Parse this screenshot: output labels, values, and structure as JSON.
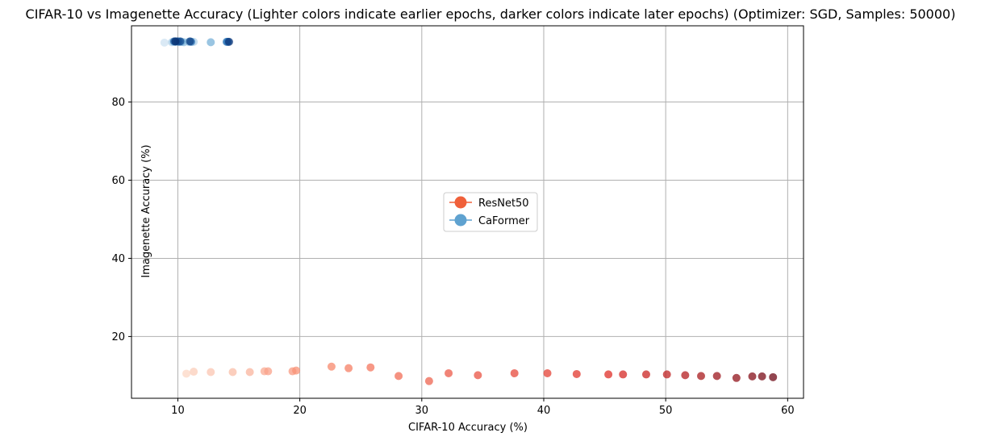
{
  "chart_data": {
    "type": "scatter",
    "title": "CIFAR-10 vs Imagenette Accuracy (Lighter colors indicate earlier epochs, darker colors indicate later epochs) (Optimizer: SGD, Samples: 50000)",
    "xlabel": "CIFAR-10 Accuracy (%)",
    "ylabel": "Imagenette Accuracy (%)",
    "xlim": [
      6.2,
      61.3
    ],
    "ylim": [
      4.2,
      99.5
    ],
    "xticks": [
      10,
      20,
      30,
      40,
      50,
      60
    ],
    "yticks": [
      20,
      40,
      60,
      80
    ],
    "grid": true,
    "legend_position": "center",
    "series": [
      {
        "name": "ResNet50",
        "color": "#f0603a",
        "colormap": "reds",
        "points": [
          [
            10.7,
            10.5
          ],
          [
            11.3,
            11.0
          ],
          [
            12.7,
            10.9
          ],
          [
            14.5,
            10.9
          ],
          [
            15.9,
            10.9
          ],
          [
            17.1,
            11.1
          ],
          [
            17.4,
            11.1
          ],
          [
            19.4,
            11.1
          ],
          [
            19.7,
            11.3
          ],
          [
            22.6,
            12.3
          ],
          [
            24.0,
            11.9
          ],
          [
            25.8,
            12.1
          ],
          [
            28.1,
            9.9
          ],
          [
            30.6,
            8.6
          ],
          [
            32.2,
            10.6
          ],
          [
            34.6,
            10.1
          ],
          [
            37.6,
            10.6
          ],
          [
            40.3,
            10.6
          ],
          [
            42.7,
            10.4
          ],
          [
            45.3,
            10.3
          ],
          [
            46.5,
            10.3
          ],
          [
            48.4,
            10.3
          ],
          [
            50.1,
            10.3
          ],
          [
            51.6,
            10.1
          ],
          [
            52.9,
            9.9
          ],
          [
            54.2,
            9.9
          ],
          [
            55.8,
            9.4
          ],
          [
            57.1,
            9.8
          ],
          [
            57.9,
            9.8
          ],
          [
            58.8,
            9.6
          ]
        ]
      },
      {
        "name": "CaFormer",
        "color": "#5fa2d0",
        "colormap": "blues",
        "points": [
          [
            8.9,
            95.2
          ],
          [
            9.5,
            95.3
          ],
          [
            11.3,
            95.4
          ],
          [
            9.6,
            95.4
          ],
          [
            10.5,
            95.3
          ],
          [
            10.9,
            95.4
          ],
          [
            12.7,
            95.3
          ],
          [
            10.3,
            95.4
          ],
          [
            9.8,
            95.4
          ],
          [
            9.9,
            95.5
          ],
          [
            10.1,
            95.4
          ],
          [
            11.1,
            95.4
          ],
          [
            14.0,
            95.4
          ],
          [
            14.1,
            95.4
          ],
          [
            9.7,
            95.5
          ],
          [
            10.0,
            95.5
          ],
          [
            10.2,
            95.5
          ],
          [
            11.0,
            95.5
          ],
          [
            14.2,
            95.4
          ],
          [
            9.8,
            95.5
          ]
        ]
      }
    ]
  }
}
